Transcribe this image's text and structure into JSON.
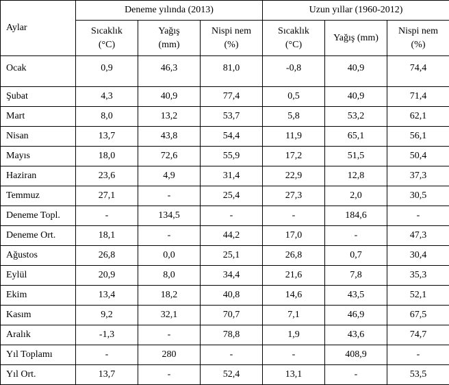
{
  "headers": {
    "months": "Aylar",
    "group1": "Deneme yılında (2013)",
    "group2": "Uzun yıllar (1960-2012)",
    "temp_l1": "Sıcaklık",
    "temp_l2": "(°C)",
    "rain_l1": "Yağış",
    "rain_l2": "(mm)",
    "rain_single": "Yağış (mm)",
    "hum_l1": "Nispi nem",
    "hum_l2": "(%)"
  },
  "rows": [
    {
      "m": "Ocak",
      "t1": "0,9",
      "r1": "46,3",
      "h1": "81,0",
      "t2": "-0,8",
      "r2": "40,9",
      "h2": "74,4"
    },
    {
      "m": "Şubat",
      "t1": "4,3",
      "r1": "40,9",
      "h1": "77,4",
      "t2": "0,5",
      "r2": "40,9",
      "h2": "71,4"
    },
    {
      "m": "Mart",
      "t1": "8,0",
      "r1": "13,2",
      "h1": "53,7",
      "t2": "5,8",
      "r2": "53,2",
      "h2": "62,1"
    },
    {
      "m": "Nisan",
      "t1": "13,7",
      "r1": "43,8",
      "h1": "54,4",
      "t2": "11,9",
      "r2": "65,1",
      "h2": "56,1"
    },
    {
      "m": "Mayıs",
      "t1": "18,0",
      "r1": "72,6",
      "h1": "55,9",
      "t2": "17,2",
      "r2": "51,5",
      "h2": "50,4"
    },
    {
      "m": "Haziran",
      "t1": "23,6",
      "r1": "4,9",
      "h1": "31,4",
      "t2": "22,9",
      "r2": "12,8",
      "h2": "37,3"
    },
    {
      "m": "Temmuz",
      "t1": "27,1",
      "r1": "-",
      "h1": "25,4",
      "t2": "27,3",
      "r2": "2,0",
      "h2": "30,5"
    },
    {
      "m": "Deneme Topl.",
      "t1": "-",
      "r1": "134,5",
      "h1": "-",
      "t2": "-",
      "r2": "184,6",
      "h2": "-"
    },
    {
      "m": "Deneme Ort.",
      "t1": "18,1",
      "r1": "-",
      "h1": "44,2",
      "t2": "17,0",
      "r2": "-",
      "h2": "47,3"
    },
    {
      "m": "Ağustos",
      "t1": "26,8",
      "r1": "0,0",
      "h1": "25,1",
      "t2": "26,8",
      "r2": "0,7",
      "h2": "30,4"
    },
    {
      "m": "Eylül",
      "t1": "20,9",
      "r1": "8,0",
      "h1": "34,4",
      "t2": "21,6",
      "r2": "7,8",
      "h2": "35,3"
    },
    {
      "m": "Ekim",
      "t1": "13,4",
      "r1": "18,2",
      "h1": "40,8",
      "t2": "14,6",
      "r2": "43,5",
      "h2": "52,1"
    },
    {
      "m": "Kasım",
      "t1": "9,2",
      "r1": "32,1",
      "h1": "70,7",
      "t2": "7,1",
      "r2": "46,9",
      "h2": "67,5"
    },
    {
      "m": "Aralık",
      "t1": "-1,3",
      "r1": "-",
      "h1": "78,8",
      "t2": "1,9",
      "r2": "43,6",
      "h2": "74,7"
    },
    {
      "m": "Yıl Toplamı",
      "t1": "-",
      "r1": "280",
      "h1": "-",
      "t2": "-",
      "r2": "408,9",
      "h2": "-"
    },
    {
      "m": "Yıl Ort.",
      "t1": "13,7",
      "r1": "-",
      "h1": "52,4",
      "t2": "13,1",
      "r2": "-",
      "h2": "53,5"
    }
  ]
}
